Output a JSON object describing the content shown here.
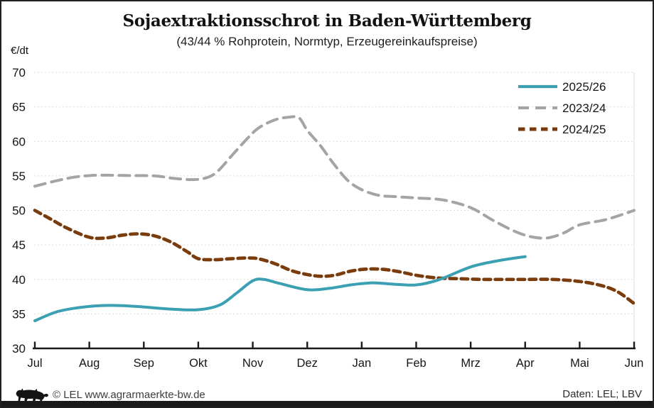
{
  "page": {
    "title": "Sojaextraktionsschrot in Baden-Württemberg",
    "subtitle": "(43/44 % Rohprotein, Normtyp, Erzeugereinkaufspreise)",
    "y_unit_label": "€/dt",
    "footer_left": "© LEL www.agrarmaerkte-bw.de",
    "footer_right": "Daten: LEL; LBV"
  },
  "chart_data": {
    "type": "line",
    "title": "Sojaextraktionsschrot in Baden-Württemberg",
    "subtitle": "(43/44 % Rohprotein, Normtyp, Erzeugereinkaufspreise)",
    "ylabel": "€/dt",
    "ylim": [
      30,
      70
    ],
    "yticks": [
      70,
      65,
      60,
      55,
      50,
      45,
      40,
      35,
      30
    ],
    "categories": [
      "Jul",
      "Aug",
      "Sep",
      "Okt",
      "Nov",
      "Dez",
      "Jan",
      "Feb",
      "Mrz",
      "Apr",
      "Mai",
      "Jun"
    ],
    "grid": "horizontal-dashed",
    "legend_position": "top-right",
    "x_note": "points use x = month index, 0 = Jul, 11 = Jun",
    "series": [
      {
        "name": "2025/26",
        "color": "#3AA0B2",
        "style": "solid",
        "monthly_values": [
          34,
          36.1,
          36,
          35.6,
          39.8,
          38.5,
          39.4,
          39.2,
          41.8,
          43.3,
          null,
          null
        ],
        "points": [
          [
            0,
            34
          ],
          [
            0.4,
            35.3
          ],
          [
            0.8,
            35.9
          ],
          [
            1.2,
            36.2
          ],
          [
            1.6,
            36.2
          ],
          [
            2,
            36
          ],
          [
            2.5,
            35.7
          ],
          [
            3,
            35.6
          ],
          [
            3.4,
            36.3
          ],
          [
            3.7,
            38
          ],
          [
            4,
            39.8
          ],
          [
            4.2,
            40
          ],
          [
            4.5,
            39.4
          ],
          [
            5,
            38.5
          ],
          [
            5.4,
            38.7
          ],
          [
            5.8,
            39.2
          ],
          [
            6.2,
            39.5
          ],
          [
            6.6,
            39.3
          ],
          [
            7,
            39.2
          ],
          [
            7.4,
            39.9
          ],
          [
            8,
            41.8
          ],
          [
            8.5,
            42.7
          ],
          [
            9,
            43.3
          ]
        ]
      },
      {
        "name": "2023/24",
        "color": "#A6A4A2",
        "style": "dashed-long",
        "monthly_values": [
          53.5,
          55,
          55,
          54.5,
          61.5,
          61.6,
          53,
          51.8,
          50.4,
          46.2,
          47.9,
          50
        ],
        "points": [
          [
            0,
            53.5
          ],
          [
            0.4,
            54.3
          ],
          [
            0.8,
            54.9
          ],
          [
            1.2,
            55.1
          ],
          [
            1.7,
            55.05
          ],
          [
            2.2,
            55
          ],
          [
            2.6,
            54.6
          ],
          [
            3,
            54.5
          ],
          [
            3.3,
            55.3
          ],
          [
            3.6,
            57.8
          ],
          [
            3.85,
            60
          ],
          [
            4.1,
            61.9
          ],
          [
            4.4,
            63.1
          ],
          [
            4.65,
            63.5
          ],
          [
            4.85,
            63.4
          ],
          [
            5,
            61.6
          ],
          [
            5.25,
            59.3
          ],
          [
            5.5,
            56.6
          ],
          [
            5.75,
            54.3
          ],
          [
            6,
            53
          ],
          [
            6.3,
            52.2
          ],
          [
            6.6,
            52
          ],
          [
            7,
            51.8
          ],
          [
            7.5,
            51.5
          ],
          [
            8,
            50.4
          ],
          [
            8.4,
            48.6
          ],
          [
            8.8,
            47
          ],
          [
            9.1,
            46.2
          ],
          [
            9.4,
            46
          ],
          [
            9.7,
            46.7
          ],
          [
            10,
            47.9
          ],
          [
            10.5,
            48.7
          ],
          [
            11,
            50
          ]
        ]
      },
      {
        "name": "2024/25",
        "color": "#7A3C0D",
        "style": "dashed-short",
        "monthly_values": [
          50,
          46.1,
          46.4,
          43,
          43.1,
          40.7,
          41.5,
          40.6,
          40.1,
          40,
          39.7,
          36.5
        ],
        "points": [
          [
            0,
            50
          ],
          [
            0.3,
            48.7
          ],
          [
            0.6,
            47.4
          ],
          [
            1,
            46.1
          ],
          [
            1.3,
            46
          ],
          [
            1.6,
            46.4
          ],
          [
            1.9,
            46.6
          ],
          [
            2.2,
            46.3
          ],
          [
            2.5,
            45.4
          ],
          [
            2.8,
            44
          ],
          [
            3,
            43
          ],
          [
            3.3,
            42.85
          ],
          [
            3.6,
            43
          ],
          [
            3.9,
            43.1
          ],
          [
            4.1,
            43
          ],
          [
            4.4,
            42.3
          ],
          [
            4.7,
            41.3
          ],
          [
            5,
            40.7
          ],
          [
            5.25,
            40.45
          ],
          [
            5.5,
            40.6
          ],
          [
            5.8,
            41.2
          ],
          [
            6.1,
            41.5
          ],
          [
            6.4,
            41.45
          ],
          [
            6.7,
            41.1
          ],
          [
            7,
            40.6
          ],
          [
            7.4,
            40.2
          ],
          [
            7.8,
            40.1
          ],
          [
            8.2,
            40
          ],
          [
            8.6,
            40
          ],
          [
            9,
            40
          ],
          [
            9.5,
            40
          ],
          [
            10,
            39.7
          ],
          [
            10.4,
            39.1
          ],
          [
            10.7,
            38.2
          ],
          [
            11,
            36.5
          ]
        ]
      }
    ],
    "colors": {
      "gridline": "#DCDCDC",
      "axis": "#1a1a1a",
      "bottom_bar": "#1a1a1a"
    }
  }
}
